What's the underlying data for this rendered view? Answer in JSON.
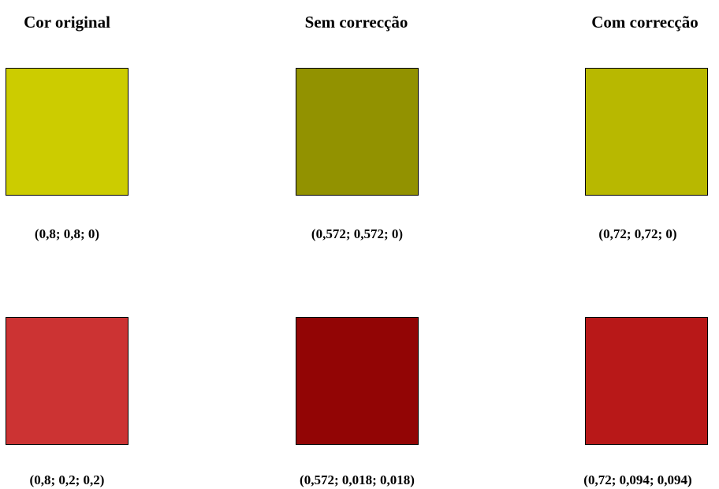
{
  "headers": {
    "original": "Cor original",
    "without": "Sem correcção",
    "with": "Com correcção"
  },
  "rows": [
    {
      "original": {
        "label": "(0,8; 0,8; 0)",
        "color": "#cccc00"
      },
      "without": {
        "label": "(0,572; 0,572; 0)",
        "color": "#929200"
      },
      "with": {
        "label": "(0,72; 0,72; 0)",
        "color": "#b8b800"
      }
    },
    {
      "original": {
        "label": "(0,8; 0,2; 0,2)",
        "color": "#cc3333"
      },
      "without": {
        "label": "(0,572; 0,018; 0,018)",
        "color": "#920505"
      },
      "with": {
        "label": "(0,72; 0,094; 0,094)",
        "color": "#b81818"
      }
    }
  ]
}
